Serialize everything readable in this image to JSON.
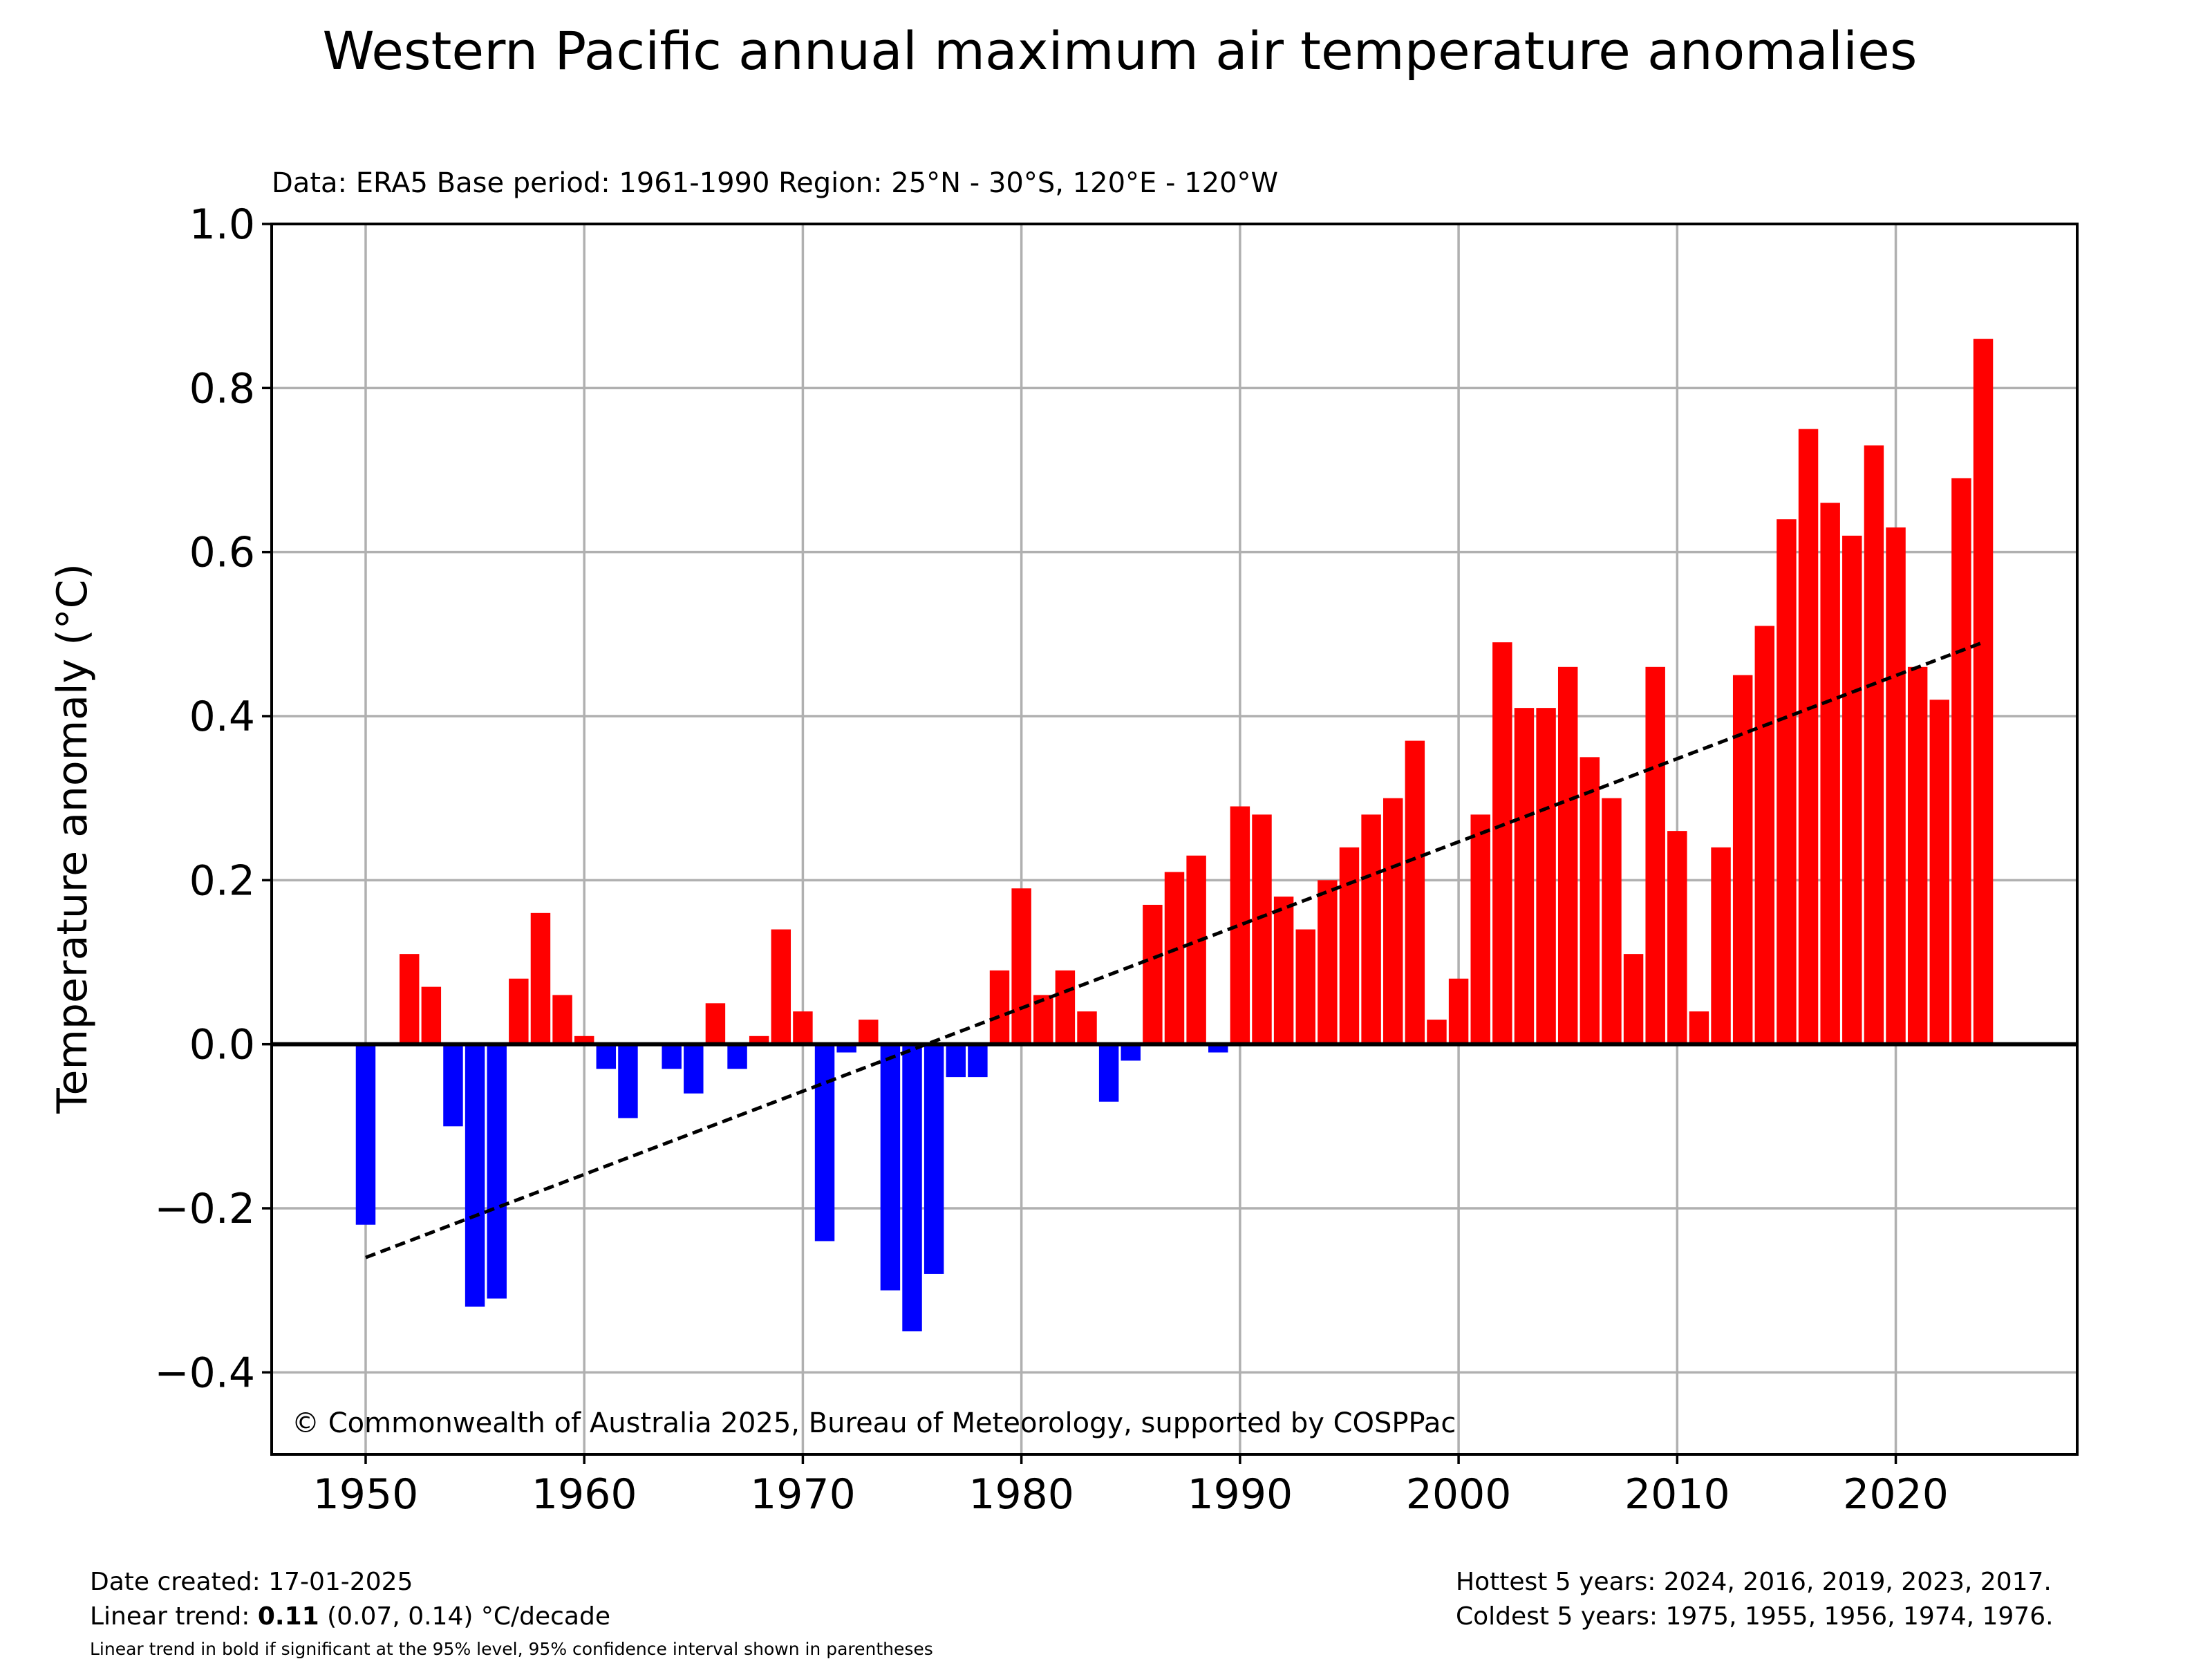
{
  "chart_data": {
    "type": "bar",
    "title": "Western Pacific annual maximum air temperature anomalies",
    "subtitle": "Data: ERA5  Base period: 1961-1990  Region: 25°N - 30°S, 120°E - 120°W",
    "xlabel": "",
    "ylabel": "Temperature anomaly (°C)",
    "ylim": [
      -0.5,
      1.0
    ],
    "xlim": [
      1945.7,
      2028.3
    ],
    "grid": true,
    "x_ticks": [
      1950,
      1960,
      1970,
      1980,
      1990,
      2000,
      2010,
      2020
    ],
    "x_tick_labels": [
      "1950",
      "1960",
      "1970",
      "1980",
      "1990",
      "2000",
      "2010",
      "2020"
    ],
    "y_ticks": [
      -0.4,
      -0.2,
      0.0,
      0.2,
      0.4,
      0.6,
      0.8,
      1.0
    ],
    "y_tick_labels": [
      "−0.4",
      "−0.2",
      "0.0",
      "0.2",
      "0.4",
      "0.6",
      "0.8",
      "1.0"
    ],
    "colors": {
      "positive": "#ff0000",
      "negative": "#0000ff",
      "trend": "#000000",
      "grid": "#b0b0b0",
      "zero_line": "#000000"
    },
    "years": [
      1950,
      1951,
      1952,
      1953,
      1954,
      1955,
      1956,
      1957,
      1958,
      1959,
      1960,
      1961,
      1962,
      1963,
      1964,
      1965,
      1966,
      1967,
      1968,
      1969,
      1970,
      1971,
      1972,
      1973,
      1974,
      1975,
      1976,
      1977,
      1978,
      1979,
      1980,
      1981,
      1982,
      1983,
      1984,
      1985,
      1986,
      1987,
      1988,
      1989,
      1990,
      1991,
      1992,
      1993,
      1994,
      1995,
      1996,
      1997,
      1998,
      1999,
      2000,
      2001,
      2002,
      2003,
      2004,
      2005,
      2006,
      2007,
      2008,
      2009,
      2010,
      2011,
      2012,
      2013,
      2014,
      2015,
      2016,
      2017,
      2018,
      2019,
      2020,
      2021,
      2022,
      2023,
      2024
    ],
    "values": [
      -0.22,
      0.0,
      0.11,
      0.07,
      -0.1,
      -0.32,
      -0.31,
      0.08,
      0.16,
      0.06,
      0.01,
      -0.03,
      -0.09,
      0.0,
      -0.03,
      -0.06,
      0.05,
      -0.03,
      0.01,
      0.14,
      0.04,
      -0.24,
      -0.01,
      0.03,
      -0.3,
      -0.35,
      -0.28,
      -0.04,
      -0.04,
      0.09,
      0.19,
      0.06,
      0.09,
      0.04,
      -0.07,
      -0.02,
      0.17,
      0.21,
      0.23,
      -0.01,
      0.29,
      0.28,
      0.18,
      0.14,
      0.2,
      0.24,
      0.28,
      0.3,
      0.37,
      0.03,
      0.08,
      0.28,
      0.49,
      0.41,
      0.41,
      0.46,
      0.35,
      0.3,
      0.11,
      0.46,
      0.26,
      0.04,
      0.24,
      0.45,
      0.51,
      0.64,
      0.75,
      0.66,
      0.62,
      0.73,
      0.63,
      0.46,
      0.42,
      0.69,
      0.86
    ],
    "trend": {
      "x": [
        1950,
        2024
      ],
      "y": [
        -0.26,
        0.49
      ],
      "style": "dashed"
    },
    "annotation": "© Commonwealth of Australia 2025, Bureau of Meteorology, supported by COSPPac"
  },
  "footer": {
    "date_created": "Date created: 17-01-2025",
    "trend_prefix": "Linear trend: ",
    "trend_value": "0.11",
    "trend_suffix": " (0.07, 0.14) °C/decade",
    "trend_note": "Linear trend in bold if significant at the 95% level, 95% confidence interval shown in parentheses",
    "hottest": "Hottest 5 years: 2024, 2016, 2019, 2023, 2017.",
    "coldest": "Coldest 5 years: 1975, 1955, 1956, 1974, 1976."
  }
}
